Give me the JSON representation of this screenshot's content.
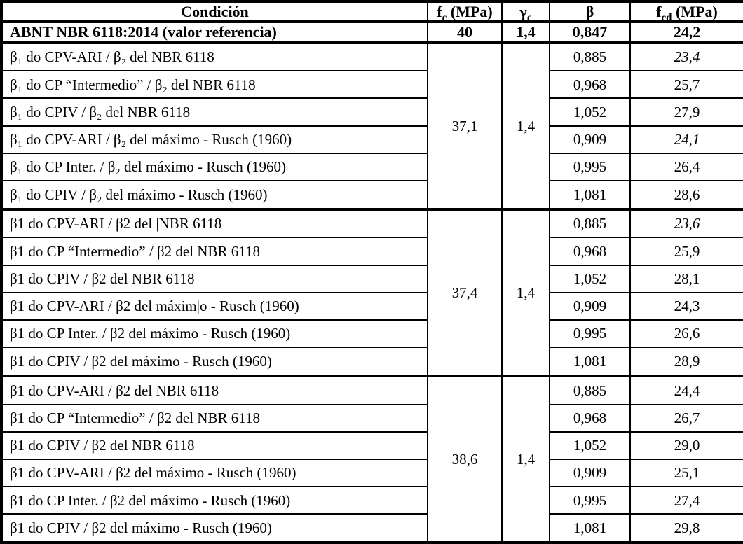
{
  "table": {
    "headers": {
      "condicion": "Condición",
      "fc": {
        "base": "f",
        "sub": "c",
        "rest": " (MPa)"
      },
      "gamma": {
        "base": "γ",
        "sub": "c",
        "rest": ""
      },
      "beta": "β",
      "fcd": {
        "base": "f",
        "sub": "cd",
        "rest": " (MPa)"
      }
    },
    "reference": {
      "condicion": "ABNT NBR 6118:2014 (valor referencia)",
      "fc": "40",
      "gamma": "1,4",
      "beta": "0,847",
      "fcd": "24,2"
    },
    "groups": [
      {
        "fc": "37,1",
        "gamma": "1,4",
        "rows": [
          {
            "condicion": "β₁ do CPV-ARI / β₂ del NBR 6118",
            "beta": "0,885",
            "fcd": "23,4",
            "fcd_italic": true
          },
          {
            "condicion": "β₁ do CP “Intermedio” / β₂ del NBR 6118",
            "beta": "0,968",
            "fcd": "25,7",
            "fcd_italic": false
          },
          {
            "condicion": "β₁ do CPIV / β₂ del NBR 6118",
            "beta": "1,052",
            "fcd": "27,9",
            "fcd_italic": false
          },
          {
            "condicion": "β₁ do CPV-ARI / β₂ del máximo - Rusch (1960)",
            "beta": "0,909",
            "fcd": "24,1",
            "fcd_italic": true
          },
          {
            "condicion": "β₁ do CP Inter. / β₂ del máximo - Rusch (1960)",
            "beta": "0,995",
            "fcd": "26,4",
            "fcd_italic": false
          },
          {
            "condicion": "β₁ do CPIV / β₂ del máximo - Rusch (1960)",
            "beta": "1,081",
            "fcd": "28,6",
            "fcd_italic": false
          }
        ]
      },
      {
        "fc": "37,4",
        "gamma": "1,4",
        "rows": [
          {
            "condicion": "β1 do CPV-ARI / β2 del |NBR 6118",
            "beta": "0,885",
            "fcd": "23,6",
            "fcd_italic": true
          },
          {
            "condicion": "β1 do CP “Intermedio” / β2 del NBR 6118",
            "beta": "0,968",
            "fcd": "25,9",
            "fcd_italic": false
          },
          {
            "condicion": "β1 do CPIV / β2 del NBR 6118",
            "beta": "1,052",
            "fcd": "28,1",
            "fcd_italic": false
          },
          {
            "condicion": "β1 do CPV-ARI / β2 del máxim|o - Rusch (1960)",
            "beta": "0,909",
            "fcd": "24,3",
            "fcd_italic": false
          },
          {
            "condicion": "β1 do CP Inter. / β2 del máximo - Rusch (1960)",
            "beta": "0,995",
            "fcd": "26,6",
            "fcd_italic": false
          },
          {
            "condicion": "β1 do CPIV / β2 del máximo - Rusch (1960)",
            "beta": "1,081",
            "fcd": "28,9",
            "fcd_italic": false
          }
        ]
      },
      {
        "fc": "38,6",
        "gamma": "1,4",
        "rows": [
          {
            "condicion": "β1 do CPV-ARI / β2 del NBR 6118",
            "beta": "0,885",
            "fcd": "24,4",
            "fcd_italic": false
          },
          {
            "condicion": "β1 do CP “Intermedio” / β2 del NBR 6118",
            "beta": "0,968",
            "fcd": "26,7",
            "fcd_italic": false
          },
          {
            "condicion": "β1 do CPIV / β2 del NBR 6118",
            "beta": "1,052",
            "fcd": "29,0",
            "fcd_italic": false
          },
          {
            "condicion": "β1 do CPV-ARI / β2 del máximo - Rusch (1960)",
            "beta": "0,909",
            "fcd": "25,1",
            "fcd_italic": false
          },
          {
            "condicion": "β1 do CP Inter. / β2 del máximo - Rusch (1960)",
            "beta": "0,995",
            "fcd": "27,4",
            "fcd_italic": false
          },
          {
            "condicion": "β1 do CPIV / β2 del máximo - Rusch (1960)",
            "beta": "1,081",
            "fcd": "29,8",
            "fcd_italic": false
          }
        ]
      }
    ]
  }
}
